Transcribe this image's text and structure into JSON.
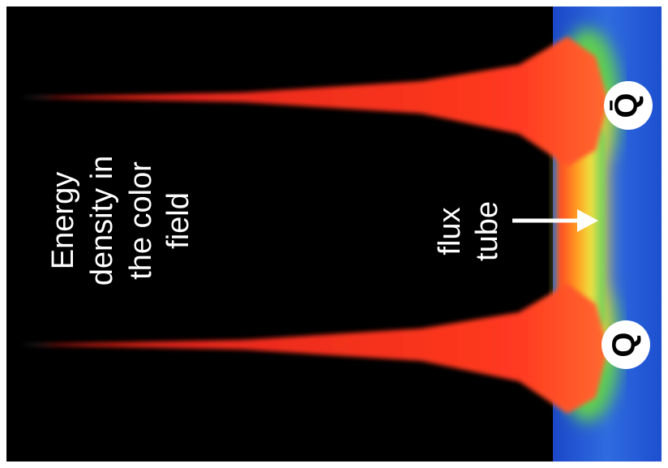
{
  "annotation": {
    "lines": [
      "Energy",
      "density in",
      "the color",
      "field"
    ]
  },
  "flux_tube": {
    "lines": [
      "flux",
      "tube"
    ]
  },
  "quarks": [
    {
      "label": "Q̄"
    },
    {
      "label": "Q"
    }
  ]
}
